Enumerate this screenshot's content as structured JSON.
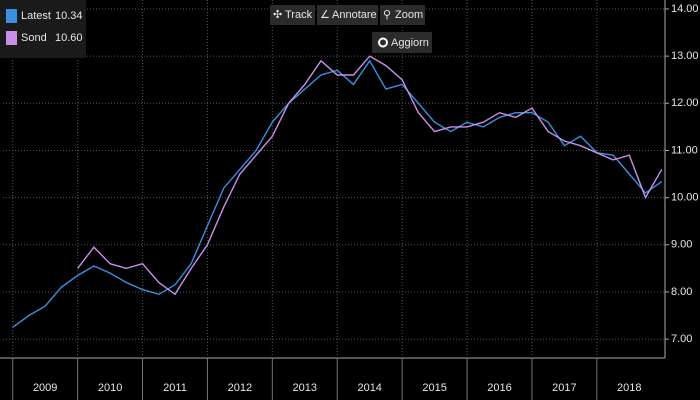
{
  "chart_data": {
    "type": "line",
    "toolbar": [
      "Track",
      "Annotare",
      "Zoom"
    ],
    "refresh": "Aggiorn",
    "x": [
      2009.0,
      2009.25,
      2009.5,
      2009.75,
      2010.0,
      2010.25,
      2010.5,
      2010.75,
      2011.0,
      2011.25,
      2011.5,
      2011.75,
      2012.0,
      2012.25,
      2012.5,
      2012.75,
      2013.0,
      2013.25,
      2013.5,
      2013.75,
      2014.0,
      2014.25,
      2014.5,
      2014.75,
      2015.0,
      2015.25,
      2015.5,
      2015.75,
      2016.0,
      2016.25,
      2016.5,
      2016.75,
      2017.0,
      2017.25,
      2017.5,
      2017.75,
      2018.0,
      2018.25,
      2018.5,
      2018.75,
      2019.0
    ],
    "series": [
      {
        "name": "Latest",
        "color": "#3a8fe0",
        "last": 10.34,
        "values": [
          7.25,
          7.5,
          7.7,
          8.1,
          8.35,
          8.55,
          8.4,
          8.2,
          8.05,
          7.95,
          8.15,
          8.6,
          9.4,
          10.2,
          10.6,
          11.0,
          11.6,
          12.0,
          12.3,
          12.6,
          12.7,
          12.4,
          12.9,
          12.3,
          12.4,
          12.0,
          11.6,
          11.4,
          11.6,
          11.5,
          11.7,
          11.8,
          11.8,
          11.6,
          11.1,
          11.3,
          10.95,
          10.9,
          10.5,
          10.1,
          10.34
        ]
      },
      {
        "name": "Sond",
        "color": "#c98ee8",
        "last": {
          "value": 10.6,
          "label": "10.60"
        },
        "values": [
          null,
          null,
          null,
          null,
          8.5,
          8.95,
          8.6,
          8.5,
          8.6,
          8.2,
          7.95,
          8.5,
          9.0,
          9.8,
          10.5,
          10.9,
          11.3,
          12.0,
          12.4,
          12.9,
          12.6,
          12.6,
          13.0,
          12.8,
          12.5,
          11.8,
          11.4,
          11.5,
          11.5,
          11.6,
          11.8,
          11.7,
          11.9,
          11.4,
          11.2,
          11.1,
          10.95,
          10.8,
          10.9,
          10.0,
          10.6
        ]
      }
    ],
    "xlim": [
      2008.85,
      2019.05
    ],
    "xticks": [
      2009,
      2010,
      2011,
      2012,
      2013,
      2014,
      2015,
      2016,
      2017,
      2018
    ],
    "ylim": [
      6.6,
      14.19
    ],
    "yticks": [
      {
        "value": 7,
        "label": "7.00"
      },
      {
        "value": 8,
        "label": "8.00"
      },
      {
        "value": 9,
        "label": "9.00"
      },
      {
        "value": 10,
        "label": "10.00"
      },
      {
        "value": 11,
        "label": "11.00"
      },
      {
        "value": 12,
        "label": "12.00"
      },
      {
        "value": 13,
        "label": "13.00"
      },
      {
        "value": 14,
        "label": "14.00"
      }
    ],
    "grid": true
  }
}
